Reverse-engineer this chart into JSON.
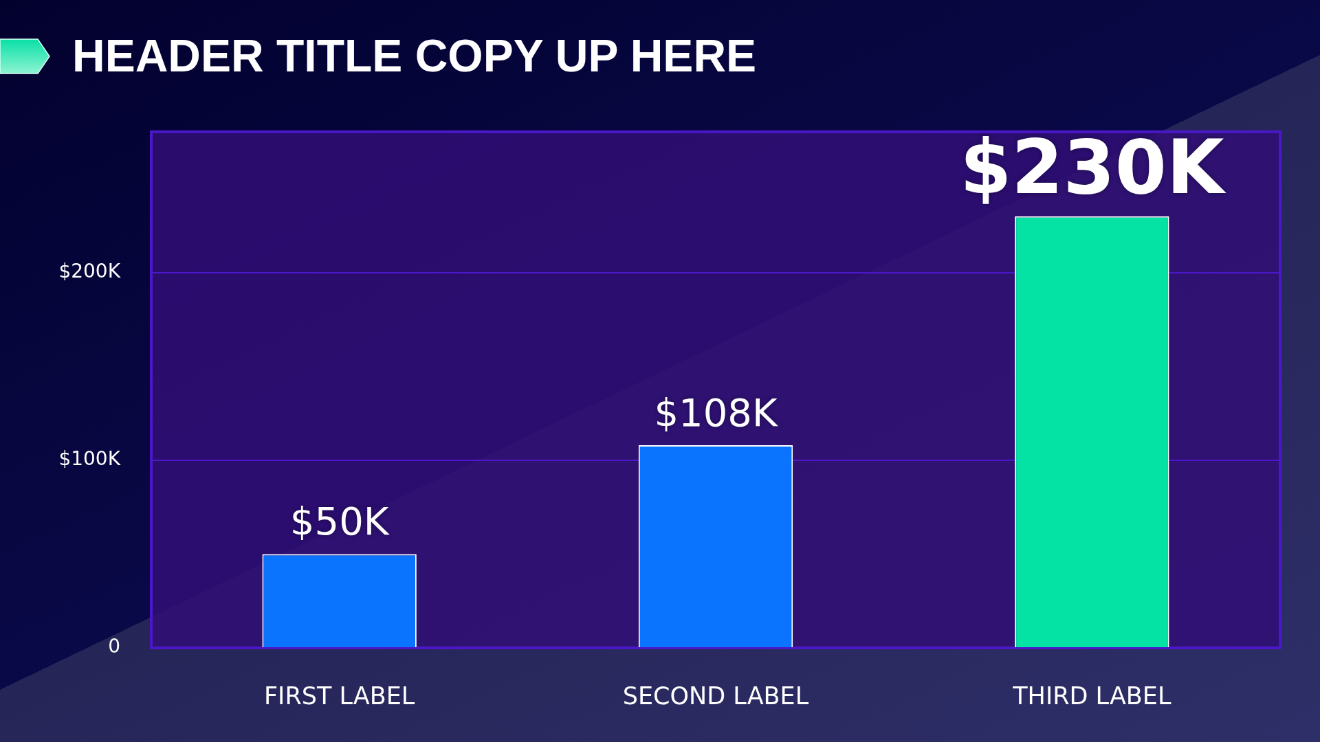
{
  "chart_data": {
    "type": "bar",
    "title": "HEADER TITLE COPY UP HERE",
    "categories": [
      "FIRST LABEL",
      "SECOND LABEL",
      "THIRD LABEL"
    ],
    "values": [
      50000,
      108000,
      230000
    ],
    "colors": [
      "#0a74ff",
      "#0a74ff",
      "#05e3a4"
    ],
    "value_labels": [
      "$50K",
      "$108K",
      "$230K"
    ],
    "ylim": [
      0,
      275000
    ],
    "yticks": [
      0,
      {
        "value": 100000,
        "label": "$100K"
      },
      {
        "value": 200000,
        "label": "$200K"
      }
    ],
    "grid": "y"
  }
}
